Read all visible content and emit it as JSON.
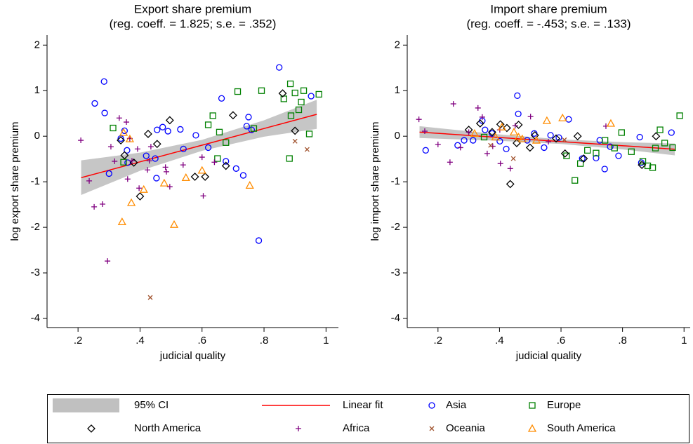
{
  "chart_data": [
    {
      "type": "scatter",
      "title": "Export share premium",
      "subtitle": "(reg. coeff. = 1.825; s.e. = .352)",
      "xlabel": "judicial quality",
      "ylabel": "log export share premium",
      "xlim": [
        0.1,
        1.04
      ],
      "ylim": [
        -4.2,
        2.22
      ],
      "xticks": [
        {
          "value": 0.2,
          "label": ".2"
        },
        {
          "value": 0.4,
          "label": ".4"
        },
        {
          "value": 0.6,
          "label": ".6"
        },
        {
          "value": 0.8,
          "label": ".8"
        },
        1
      ],
      "yticks": [
        2,
        1,
        0,
        -1,
        -2,
        -3,
        -4
      ],
      "series": [
        {
          "name": "95% CI",
          "type": "band",
          "color": "#c0c0c0",
          "x": [
            0.21,
            0.4,
            0.6,
            0.8,
            0.97
          ],
          "lower": [
            -1.29,
            -0.76,
            -0.32,
            -0.01,
            0.16
          ],
          "upper": [
            -0.53,
            -0.36,
            -0.08,
            0.35,
            0.8
          ]
        },
        {
          "name": "Linear fit",
          "type": "line",
          "color": "#ff0000",
          "x": [
            0.21,
            0.97
          ],
          "values": [
            -0.91,
            0.48
          ]
        },
        {
          "name": "Asia",
          "marker": "circle",
          "color": "#0000ff",
          "x": [
            0.254,
            0.284,
            0.286,
            0.3,
            0.338,
            0.35,
            0.358,
            0.36,
            0.455,
            0.473,
            0.49,
            0.453,
            0.53,
            0.54,
            0.58,
            0.62,
            0.663,
            0.677,
            0.71,
            0.733,
            0.744,
            0.75,
            0.76,
            0.783,
            0.849,
            0.952,
            0.449,
            0.42
          ],
          "values": [
            0.72,
            1.2,
            0.51,
            -0.82,
            -0.05,
            0.12,
            -0.31,
            -0.58,
            0.14,
            0.2,
            0.11,
            -0.92,
            0.15,
            -0.28,
            0.02,
            -0.25,
            0.83,
            -0.55,
            -0.71,
            -0.86,
            0.22,
            0.42,
            0.14,
            -2.29,
            1.51,
            0.88,
            -0.49,
            -0.43
          ]
        },
        {
          "name": "Europe",
          "marker": "square",
          "color": "#008000",
          "x": [
            0.313,
            0.347,
            0.62,
            0.635,
            0.656,
            0.677,
            0.715,
            0.767,
            0.792,
            0.864,
            0.885,
            0.9,
            0.912,
            0.92,
            0.928,
            0.946,
            0.977,
            0.882,
            0.65,
            0.887
          ],
          "values": [
            0.18,
            -0.57,
            0.25,
            0.45,
            0.09,
            -0.14,
            0.98,
            0.17,
            1.0,
            0.82,
            1.15,
            0.95,
            0.58,
            0.75,
            1.0,
            0.05,
            0.92,
            -0.49,
            -0.49,
            0.45
          ]
        },
        {
          "name": "North America",
          "marker": "diamond",
          "color": "#000000",
          "x": [
            0.338,
            0.35,
            0.38,
            0.4,
            0.426,
            0.455,
            0.496,
            0.577,
            0.61,
            0.677,
            0.7,
            0.86,
            0.9
          ],
          "values": [
            -0.09,
            -0.42,
            -0.58,
            -1.32,
            0.05,
            -0.17,
            0.35,
            -0.89,
            -0.89,
            -0.65,
            0.46,
            0.94,
            0.12
          ]
        },
        {
          "name": "Africa",
          "marker": "plus",
          "color": "#800080",
          "x": [
            0.209,
            0.236,
            0.252,
            0.279,
            0.295,
            0.306,
            0.318,
            0.333,
            0.356,
            0.36,
            0.374,
            0.392,
            0.397,
            0.424,
            0.435,
            0.482,
            0.485,
            0.496,
            0.539,
            0.6,
            0.604,
            0.64,
            0.43,
            0.367
          ],
          "values": [
            -0.09,
            -0.98,
            -1.55,
            -1.49,
            -2.74,
            -0.23,
            -0.55,
            0.4,
            0.31,
            -0.94,
            -0.54,
            -0.28,
            -1.14,
            -0.74,
            -0.23,
            -0.68,
            -0.78,
            -1.11,
            -0.63,
            -0.46,
            -1.31,
            -0.57,
            -0.54,
            -0.05
          ]
        },
        {
          "name": "Oceania",
          "marker": "x",
          "color": "#a0522d",
          "x": [
            0.433,
            0.9,
            0.939
          ],
          "values": [
            -3.54,
            -0.11,
            -0.29
          ]
        },
        {
          "name": "South America",
          "marker": "triangle",
          "color": "#ff8c00",
          "x": [
            0.367,
            0.372,
            0.342,
            0.412,
            0.478,
            0.51,
            0.548,
            0.6,
            0.754,
            0.347
          ],
          "values": [
            -0.06,
            -1.46,
            -1.88,
            -1.17,
            -1.03,
            -1.94,
            -0.91,
            -0.75,
            -1.08,
            0.08
          ]
        }
      ]
    },
    {
      "type": "scatter",
      "title": "Import share premium",
      "subtitle": "(reg. coeff. = -.453; s.e. = .133)",
      "xlabel": "judicial quality",
      "ylabel": "log import share premium",
      "xlim": [
        0.1,
        1.02
      ],
      "ylim": [
        -4.2,
        2.22
      ],
      "xticks": [
        {
          "value": 0.2,
          "label": ".2"
        },
        {
          "value": 0.4,
          "label": ".4"
        },
        {
          "value": 0.6,
          "label": ".6"
        },
        {
          "value": 0.8,
          "label": ".8"
        },
        1
      ],
      "yticks": [
        2,
        1,
        0,
        -1,
        -2,
        -3,
        -4
      ],
      "series": [
        {
          "name": "95% CI",
          "type": "band",
          "color": "#c0c0c0",
          "x": [
            0.14,
            0.4,
            0.6,
            0.8,
            0.97
          ],
          "lower": [
            -0.04,
            -0.1,
            -0.17,
            -0.29,
            -0.42
          ],
          "upper": [
            0.22,
            0.04,
            -0.07,
            -0.13,
            -0.16
          ]
        },
        {
          "name": "Linear fit",
          "type": "line",
          "color": "#ff0000",
          "x": [
            0.14,
            0.97
          ],
          "values": [
            0.09,
            -0.286
          ]
        },
        {
          "name": "Asia",
          "marker": "circle",
          "color": "#0000ff",
          "x": [
            0.16,
            0.264,
            0.285,
            0.314,
            0.344,
            0.353,
            0.376,
            0.401,
            0.422,
            0.458,
            0.461,
            0.49,
            0.513,
            0.545,
            0.566,
            0.593,
            0.625,
            0.669,
            0.714,
            0.726,
            0.742,
            0.76,
            0.787,
            0.856,
            0.861,
            0.959
          ],
          "values": [
            -0.31,
            -0.2,
            -0.09,
            -0.09,
            0.34,
            0.14,
            0.06,
            -0.11,
            -0.28,
            0.89,
            0.49,
            -0.09,
            0.06,
            -0.25,
            0.02,
            -0.03,
            0.37,
            -0.49,
            -0.48,
            -0.09,
            -0.72,
            -0.23,
            -0.43,
            -0.02,
            -0.58,
            0.08
          ]
        },
        {
          "name": "Europe",
          "marker": "square",
          "color": "#008000",
          "x": [
            0.35,
            0.618,
            0.645,
            0.663,
            0.686,
            0.714,
            0.743,
            0.774,
            0.797,
            0.829,
            0.866,
            0.882,
            0.898,
            0.907,
            0.922,
            0.937,
            0.963,
            0.986
          ],
          "values": [
            -0.02,
            -0.43,
            -0.97,
            -0.6,
            -0.31,
            -0.37,
            -0.09,
            -0.26,
            0.08,
            -0.34,
            -0.55,
            -0.65,
            -0.69,
            -0.26,
            0.14,
            -0.15,
            -0.25,
            0.45
          ]
        },
        {
          "name": "North America",
          "marker": "diamond",
          "color": "#000000",
          "x": [
            0.3,
            0.337,
            0.376,
            0.403,
            0.424,
            0.435,
            0.456,
            0.462,
            0.499,
            0.515,
            0.584,
            0.613,
            0.654,
            0.674,
            0.863,
            0.909
          ],
          "values": [
            0.14,
            0.28,
            0.09,
            0.26,
            0.18,
            -1.05,
            -0.15,
            0.25,
            -0.25,
            0.02,
            -0.05,
            -0.38,
            0.0,
            -0.49,
            -0.63,
            0.0
          ]
        },
        {
          "name": "Africa",
          "marker": "plus",
          "color": "#800080",
          "x": [
            0.138,
            0.157,
            0.2,
            0.239,
            0.25,
            0.273,
            0.3,
            0.33,
            0.344,
            0.36,
            0.401,
            0.403,
            0.435,
            0.451,
            0.501,
            0.559,
            0.746,
            0.378
          ],
          "values": [
            0.37,
            0.11,
            -0.18,
            -0.57,
            0.71,
            -0.25,
            0.09,
            0.62,
            0.42,
            -0.38,
            0.14,
            -0.6,
            -0.71,
            0.23,
            0.43,
            -0.12,
            0.22,
            -0.22
          ]
        },
        {
          "name": "Oceania",
          "marker": "x",
          "color": "#a0522d",
          "x": [
            0.371,
            0.445,
            0.611
          ],
          "values": [
            -0.2,
            -0.49,
            -0.08
          ]
        },
        {
          "name": "South America",
          "marker": "triangle",
          "color": "#ff8c00",
          "x": [
            0.319,
            0.387,
            0.408,
            0.447,
            0.462,
            0.52,
            0.554,
            0.605,
            0.762,
            0.474
          ],
          "values": [
            0.06,
            -0.02,
            0.2,
            0.09,
            -0.02,
            -0.09,
            0.34,
            0.4,
            0.28,
            -0.06
          ]
        }
      ]
    }
  ]
}
